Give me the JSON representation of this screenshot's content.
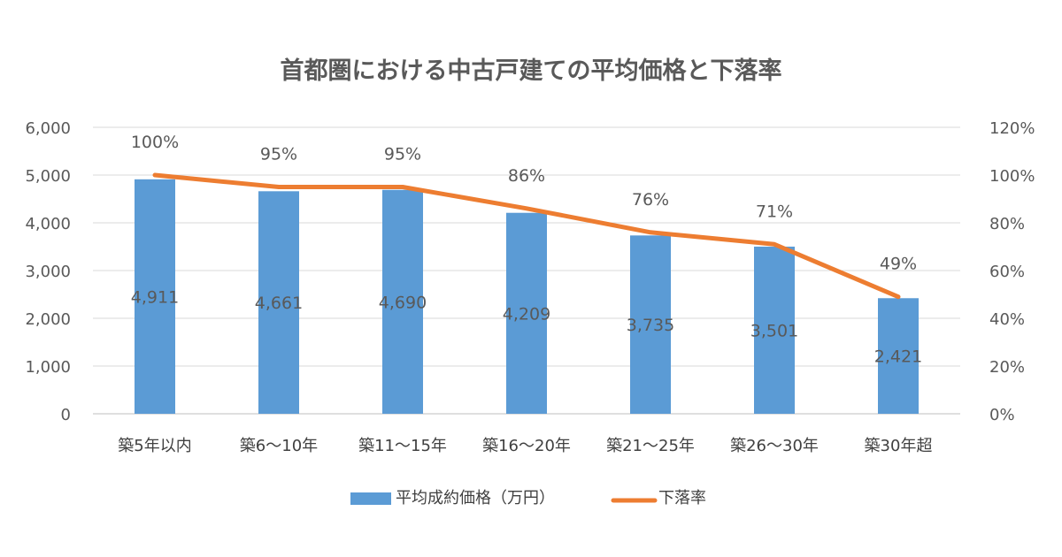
{
  "chart_data": {
    "type": "bar+line",
    "title": "首都圏における中古戸建ての平均価格と下落率",
    "categories": [
      "築5年以内",
      "築6～10年",
      "築11～15年",
      "築16～20年",
      "築21～25年",
      "築26～30年",
      "築30年超"
    ],
    "series": [
      {
        "name": "平均成約価格（万円）",
        "type": "bar",
        "axis": "left",
        "color": "#5B9BD5",
        "values": [
          4911,
          4661,
          4690,
          4209,
          3735,
          3501,
          2421
        ],
        "labels": [
          "4,911",
          "4,661",
          "4,690",
          "4,209",
          "3,735",
          "3,501",
          "2,421"
        ]
      },
      {
        "name": "下落率",
        "type": "line",
        "axis": "right",
        "color": "#ED7D31",
        "values": [
          100,
          95,
          95,
          86,
          76,
          71,
          49
        ],
        "labels": [
          "100%",
          "95%",
          "95%",
          "86%",
          "76%",
          "71%",
          "49%"
        ]
      }
    ],
    "y_left": {
      "min": 0,
      "max": 6000,
      "ticks": [
        "0",
        "1,000",
        "2,000",
        "3,000",
        "4,000",
        "5,000",
        "6,000"
      ]
    },
    "y_right": {
      "min": 0,
      "max": 120,
      "ticks": [
        "0%",
        "20%",
        "40%",
        "60%",
        "80%",
        "100%",
        "120%"
      ]
    },
    "grid": true,
    "legend": "bottom"
  }
}
